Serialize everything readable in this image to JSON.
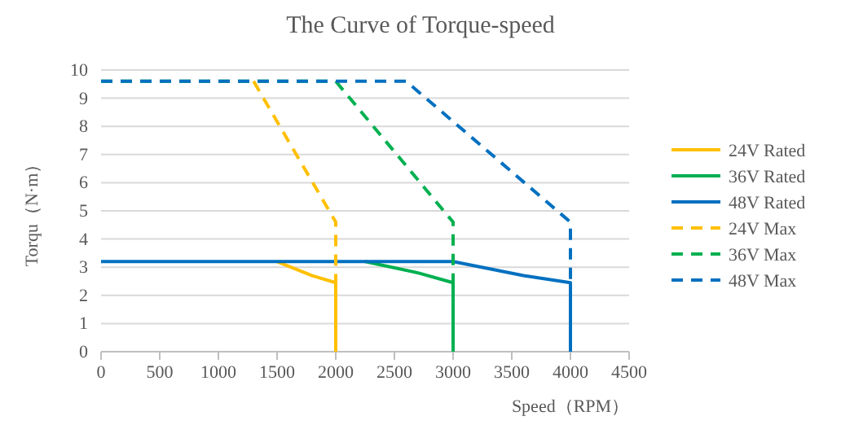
{
  "chart_data": {
    "type": "line",
    "title": "The Curve of Torque-speed",
    "xlabel": "Speed（RPM）",
    "ylabel": "Torqu（N·m）",
    "xlim": [
      0,
      4500
    ],
    "xticks": [
      0,
      500,
      1000,
      1500,
      2000,
      2500,
      3000,
      3500,
      4000,
      4500
    ],
    "ylim": [
      0,
      10
    ],
    "yticks": [
      0,
      1,
      2,
      3,
      4,
      5,
      6,
      7,
      8,
      9,
      10
    ],
    "grid": "y",
    "legend": "right",
    "series": [
      {
        "name": "24V Rated",
        "color": "#ffc000",
        "line_style": "solid",
        "x": [
          1500,
          1800,
          2000,
          2000
        ],
        "values": [
          3.2,
          2.7,
          2.45,
          0
        ]
      },
      {
        "name": "36V Rated",
        "color": "#00b050",
        "line_style": "solid",
        "x": [
          2250,
          2700,
          3000,
          3000
        ],
        "values": [
          3.2,
          2.8,
          2.45,
          0
        ]
      },
      {
        "name": "48V Rated",
        "color": "#0070c0",
        "line_style": "solid",
        "x": [
          0,
          3000,
          3600,
          4000,
          4000
        ],
        "values": [
          3.2,
          3.2,
          2.7,
          2.45,
          0
        ]
      },
      {
        "name": "24V Max",
        "color": "#ffc000",
        "line_style": "dashed",
        "x": [
          1300,
          2000,
          2000
        ],
        "values": [
          9.6,
          4.6,
          2.45
        ]
      },
      {
        "name": "36V Max",
        "color": "#00b050",
        "line_style": "dashed",
        "x": [
          0,
          2000,
          3000,
          3000
        ],
        "values": [
          9.6,
          9.6,
          4.6,
          2.45
        ]
      },
      {
        "name": "48V Max",
        "color": "#0070c0",
        "line_style": "dashed",
        "x": [
          0,
          2600,
          4000,
          4000
        ],
        "values": [
          9.6,
          9.6,
          4.6,
          2.45
        ]
      }
    ]
  }
}
